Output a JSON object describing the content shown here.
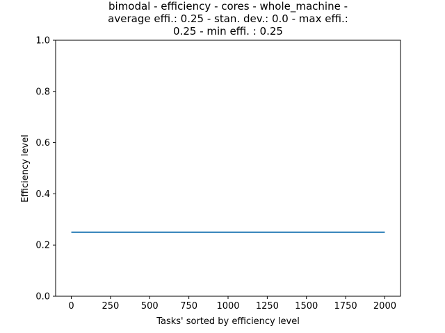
{
  "chart_data": {
    "type": "line",
    "title_lines": [
      "bimodal - efficiency - cores - whole_machine -",
      "average effi.: 0.25 - stan. dev.: 0.0 - max effi.:",
      "0.25 - min effi. : 0.25"
    ],
    "xlabel": "Tasks' sorted by efficiency level",
    "ylabel": "Efficiency level",
    "xlim": [
      -100,
      2100
    ],
    "ylim": [
      0.0,
      1.0
    ],
    "xticks": [
      0,
      250,
      500,
      750,
      1000,
      1250,
      1500,
      1750,
      2000
    ],
    "xtick_labels": [
      "0",
      "250",
      "500",
      "750",
      "1000",
      "1250",
      "1500",
      "1750",
      "2000"
    ],
    "yticks": [
      0.0,
      0.2,
      0.4,
      0.6,
      0.8,
      1.0
    ],
    "ytick_labels": [
      "0.0",
      "0.2",
      "0.4",
      "0.6",
      "0.8",
      "1.0"
    ],
    "grid": false,
    "series": [
      {
        "color": "#1f77b4",
        "x": [
          0,
          2000
        ],
        "y": [
          0.25,
          0.25
        ]
      }
    ]
  }
}
